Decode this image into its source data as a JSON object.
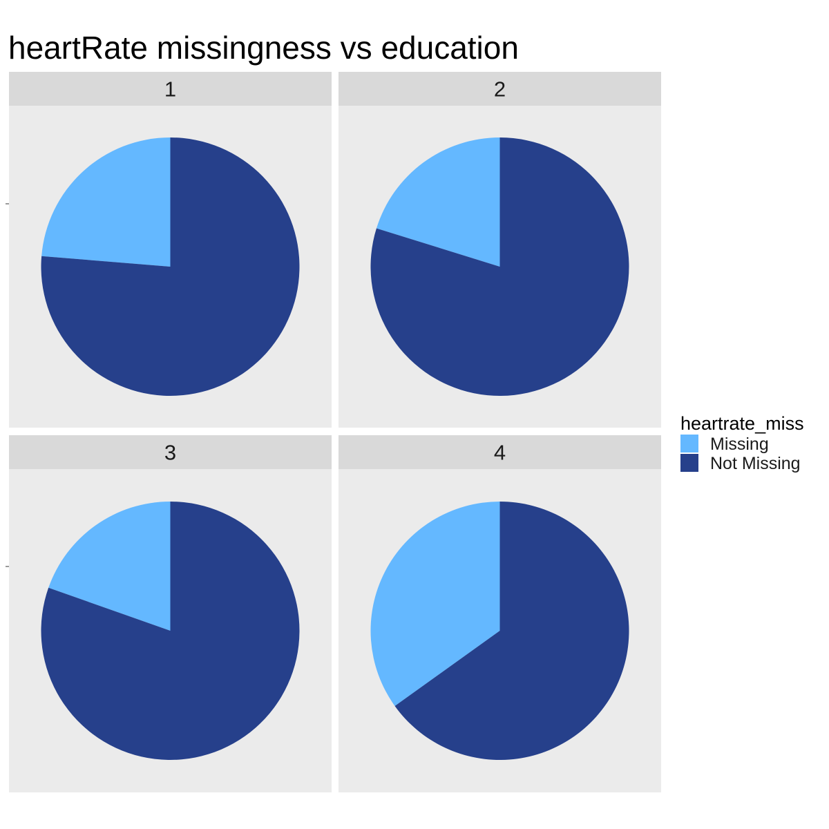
{
  "chart_data": {
    "type": "pie",
    "title": "heartRate missingness vs education",
    "facets": [
      {
        "label": "1",
        "values": [
          {
            "category": "Missing",
            "value": 23.7
          },
          {
            "category": "Not Missing",
            "value": 76.3
          }
        ]
      },
      {
        "label": "2",
        "values": [
          {
            "category": "Missing",
            "value": 20.2
          },
          {
            "category": "Not Missing",
            "value": 79.8
          }
        ]
      },
      {
        "label": "3",
        "values": [
          {
            "category": "Missing",
            "value": 19.6
          },
          {
            "category": "Not Missing",
            "value": 80.4
          }
        ]
      },
      {
        "label": "4",
        "values": [
          {
            "category": "Missing",
            "value": 34.9
          },
          {
            "category": "Not Missing",
            "value": 65.1
          }
        ]
      }
    ],
    "legend": {
      "title": "heartrate_miss",
      "position": "right",
      "items": [
        {
          "label": "Missing",
          "color": "#64B8FF"
        },
        {
          "label": "Not Missing",
          "color": "#26408B"
        }
      ]
    },
    "grid": false,
    "colors": {
      "panel_background": "#EBEBEB",
      "strip_background": "#D9D9D9"
    }
  }
}
